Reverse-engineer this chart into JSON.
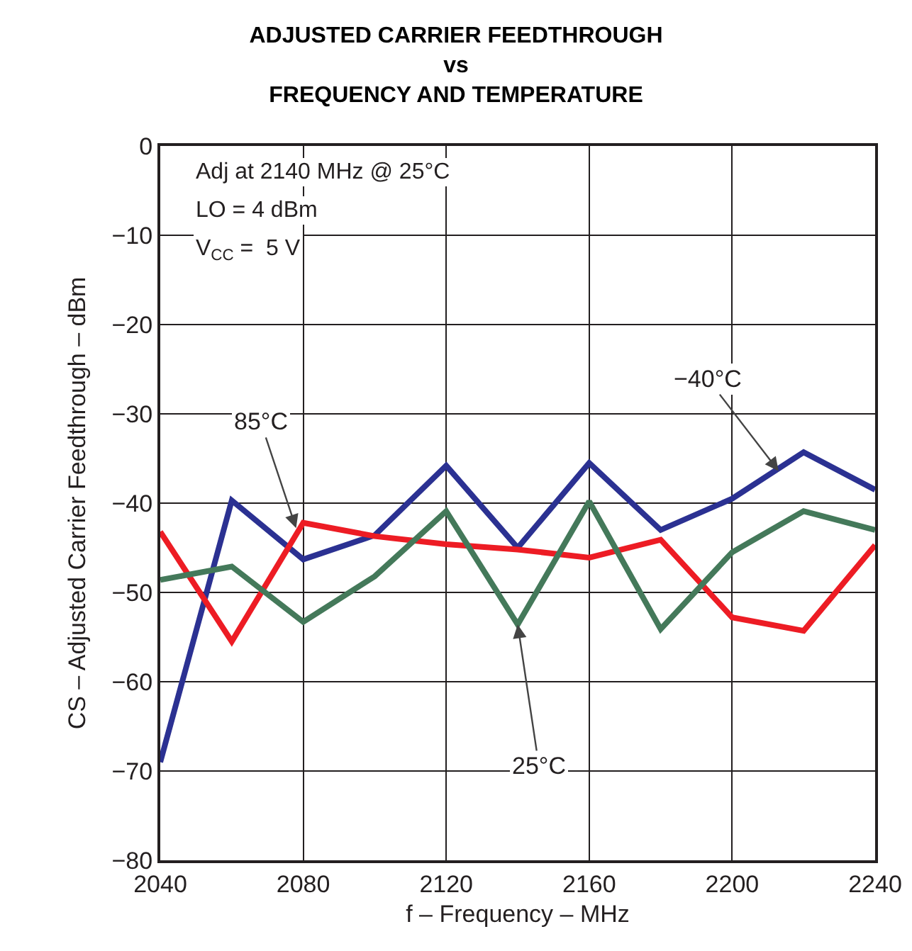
{
  "chart_data": {
    "type": "line",
    "title": "ADJUSTED CARRIER FEEDTHROUGH\nvs\nFREQUENCY AND TEMPERATURE",
    "xlabel": "f – Frequency – MHz",
    "ylabel": "CS – Adjusted Carrier Feedthrough – dBm",
    "x": [
      2040,
      2060,
      2080,
      2100,
      2120,
      2140,
      2160,
      2180,
      2200,
      2220,
      2240
    ],
    "series": [
      {
        "name": "−40°C",
        "color": "#2b3192",
        "values": [
          -69,
          -39.7,
          -46.3,
          -43.6,
          -35.8,
          -45,
          -35.5,
          -43,
          -39.5,
          -34.3,
          -38.5
        ]
      },
      {
        "name": "85°C",
        "color": "#ed1c24",
        "values": [
          -43.2,
          -55.5,
          -42.2,
          -43.7,
          -44.6,
          -45.2,
          -46.1,
          -44.1,
          -52.8,
          -54.3,
          -44.7
        ]
      },
      {
        "name": "25°C",
        "color": "#44795a",
        "values": [
          -48.6,
          -47.1,
          -53.3,
          -48.2,
          -40.9,
          -53.6,
          -39.8,
          -54.1,
          -45.5,
          -40.9,
          -43
        ]
      }
    ],
    "annotations": [
      "Adj at 2140 MHz @ 25°C",
      "LO = 4 dBm",
      "V$_{CC}$ =  5 V"
    ],
    "xlim": [
      2040,
      2240
    ],
    "xticks": [
      2040,
      2080,
      2120,
      2160,
      2200,
      2240
    ],
    "ylim": [
      -80,
      0
    ],
    "yticks": [
      {
        "value": -80,
        "label": "−80"
      },
      {
        "value": -70,
        "label": "−70"
      },
      {
        "value": -60,
        "label": "−60"
      },
      {
        "value": -50,
        "label": "−50"
      },
      {
        "value": -40,
        "label": "−40"
      },
      {
        "value": -30,
        "label": "−30"
      },
      {
        "value": -20,
        "label": "−20"
      },
      {
        "value": -10,
        "label": "−10"
      },
      0
    ],
    "grid": true,
    "legend": false,
    "marker": "none",
    "line_style": "solid"
  }
}
